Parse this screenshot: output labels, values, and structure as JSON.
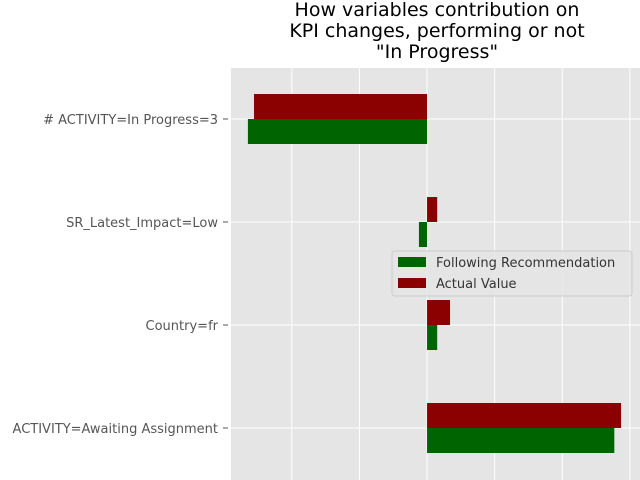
{
  "chart_data": {
    "type": "bar",
    "orientation": "horizontal",
    "title": [
      "How variables contribution on",
      "KPI changes, performing or not",
      "\"In Progress\""
    ],
    "xlabel": "",
    "ylabel": "",
    "categories": [
      "# ACTIVITY=In Progress=3",
      "SR_Latest_Impact=Low",
      "Country=fr",
      "ACTIVITY=Awaiting Assignment"
    ],
    "series": [
      {
        "name": "Following Recommendation",
        "color": "#006400",
        "values": [
          -0.265,
          -0.012,
          0.015,
          0.277
        ]
      },
      {
        "name": "Actual Value",
        "color": "#8b0000",
        "values": [
          -0.256,
          0.015,
          0.034,
          0.287
        ]
      }
    ],
    "xlim": [
      -0.29,
      0.315
    ],
    "grid": true,
    "legend_position": "center-right",
    "background_color": "#e5e5e5"
  }
}
